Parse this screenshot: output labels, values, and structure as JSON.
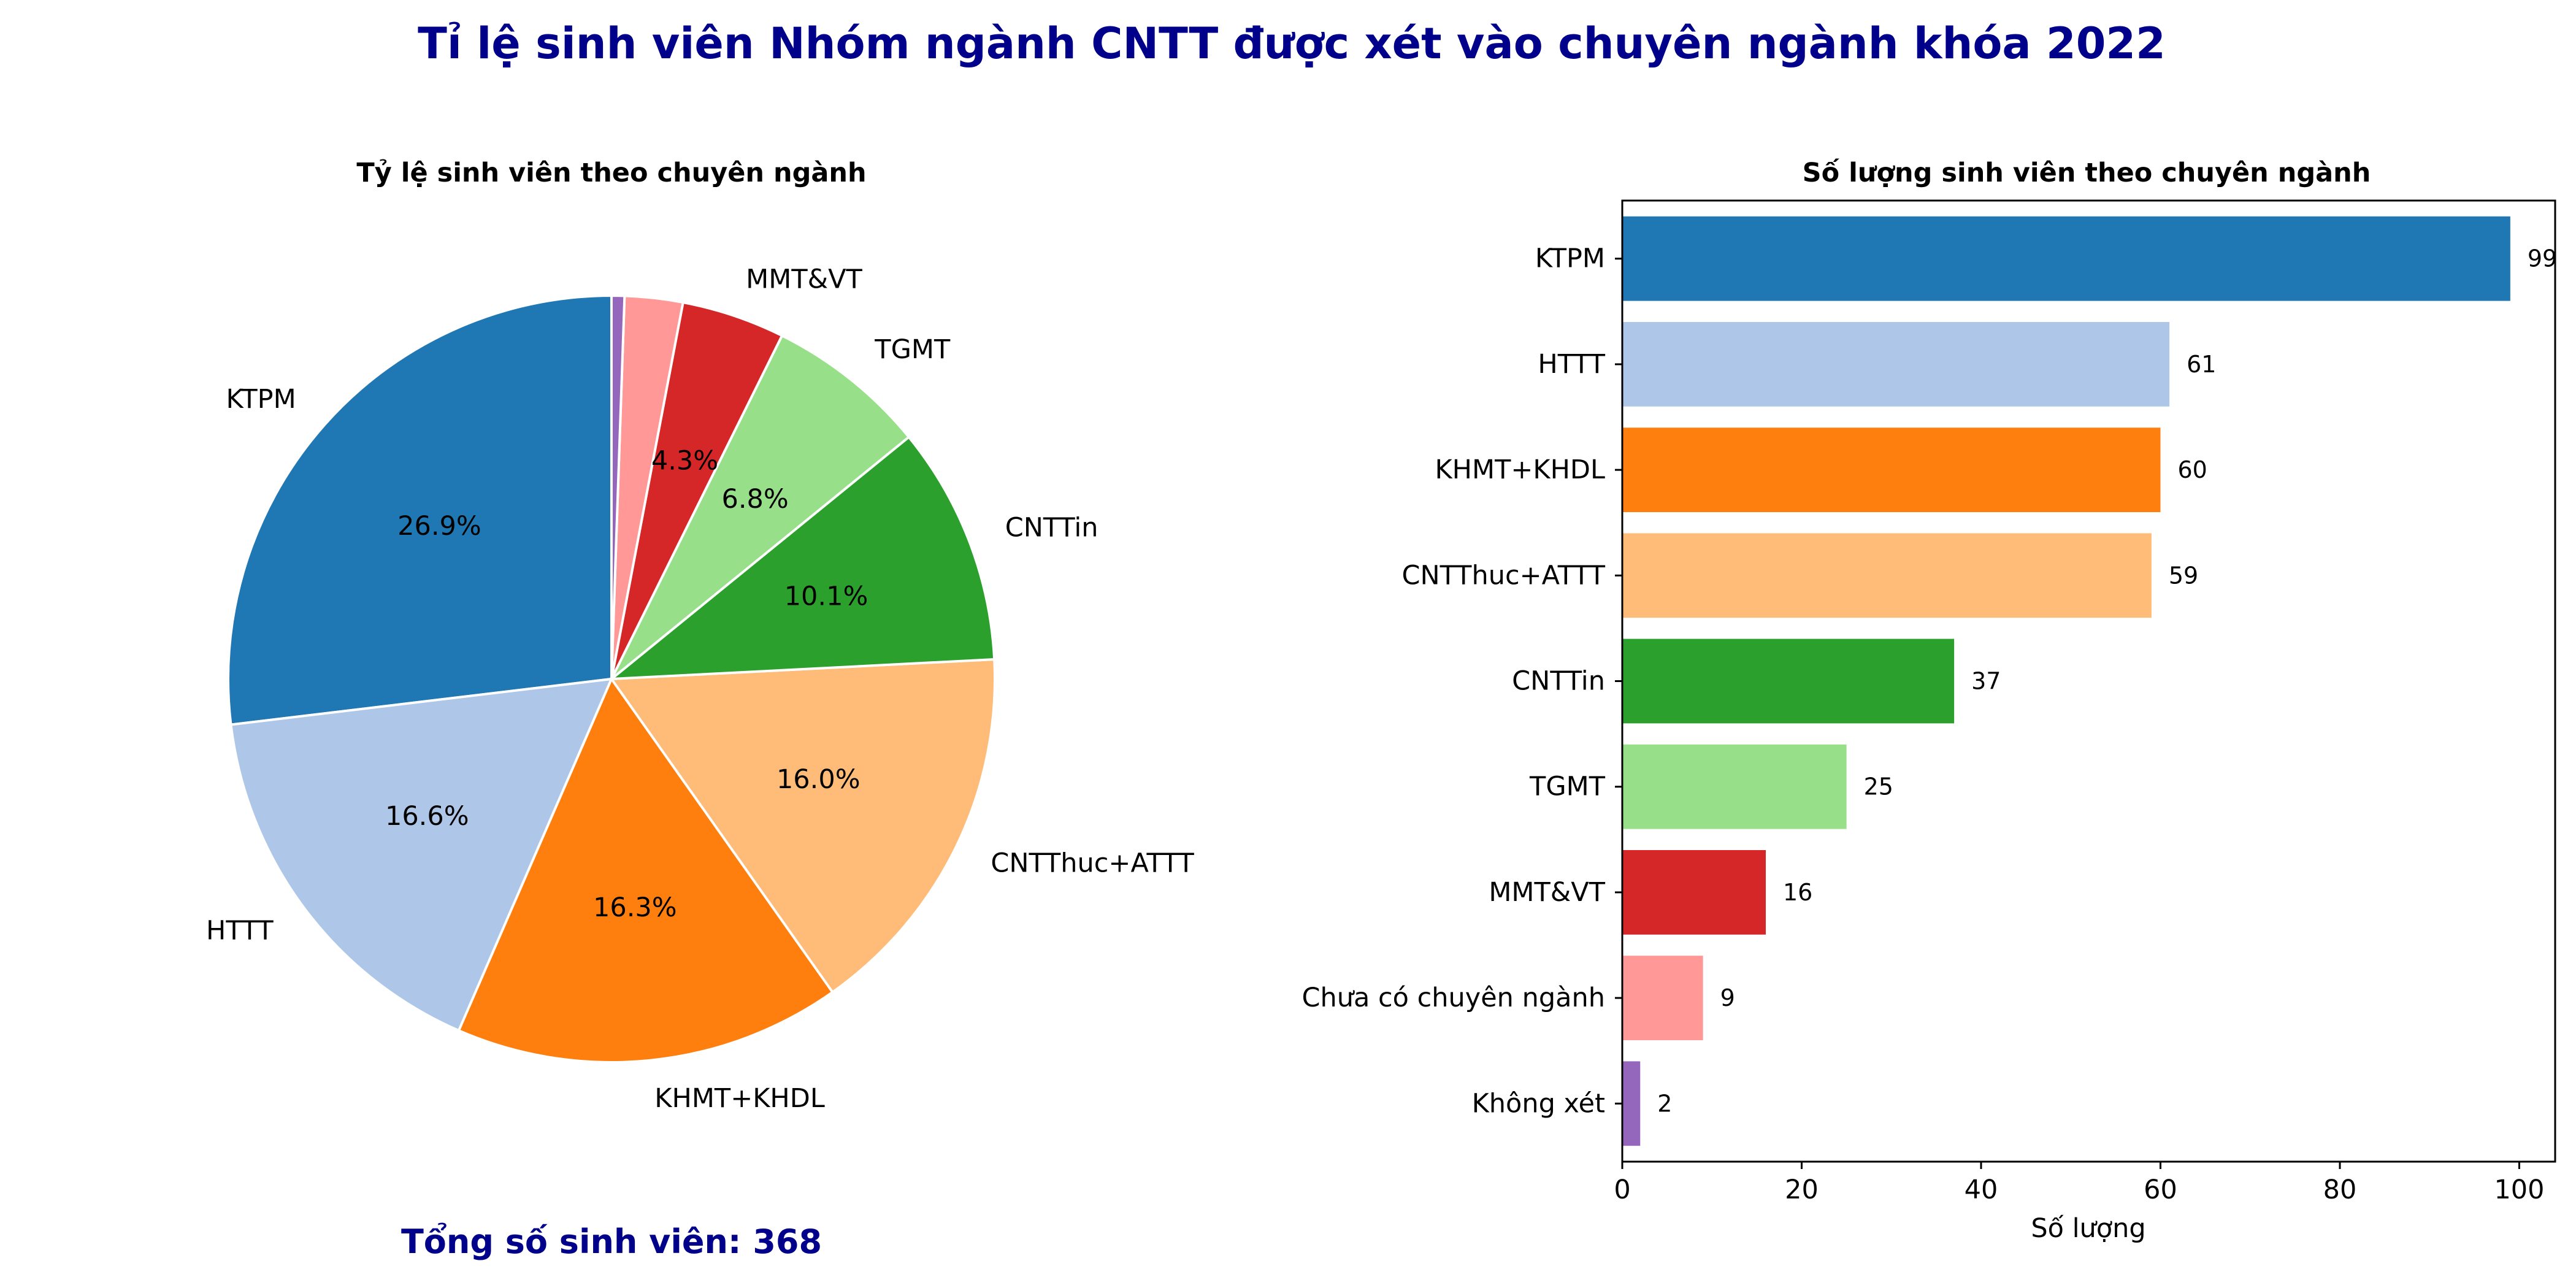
{
  "title": "Tỉ lệ sinh viên Nhóm ngành CNTT được xét vào chuyên ngành khóa 2022",
  "total_label": "Tổng số sinh viên: 368",
  "colors": {
    "title": "#00008b",
    "KTPM": "#1f77b4",
    "HTTT": "#aec7e8",
    "KHMT+KHDL": "#ff7f0e",
    "CNTThuc+ATTT": "#ffbb78",
    "CNTTin": "#2ca02c",
    "TGMT": "#98df8a",
    "MMT&VT": "#d62728",
    "Chưa có chuyên ngành": "#ff9896",
    "Không xét": "#9467bd"
  },
  "chart_data": [
    {
      "type": "pie",
      "title": "Tỷ lệ sinh viên theo chuyên ngành",
      "start_angle_deg": 90,
      "direction": "counterclockwise",
      "labels": [
        "KTPM",
        "HTTT",
        "KHMT+KHDL",
        "CNTThuc+ATTT",
        "CNTTin",
        "TGMT",
        "MMT&VT",
        "",
        ""
      ],
      "categories": [
        "KTPM",
        "HTTT",
        "KHMT+KHDL",
        "CNTThuc+ATTT",
        "CNTTin",
        "TGMT",
        "MMT&VT",
        "Chưa có chuyên ngành",
        "Không xét"
      ],
      "values": [
        99,
        61,
        60,
        59,
        37,
        25,
        16,
        9,
        2
      ],
      "pct_labels": [
        "26.9%",
        "16.6%",
        "16.3%",
        "16.0%",
        "10.1%",
        "6.8%",
        "4.3%",
        "",
        ""
      ]
    },
    {
      "type": "bar",
      "orientation": "horizontal",
      "title": "Số lượng sinh viên theo chuyên ngành",
      "categories": [
        "KTPM",
        "HTTT",
        "KHMT+KHDL",
        "CNTThuc+ATTT",
        "CNTTin",
        "TGMT",
        "MMT&VT",
        "Chưa có chuyên ngành",
        "Không xét"
      ],
      "values": [
        99,
        61,
        60,
        59,
        37,
        25,
        16,
        9,
        2
      ],
      "xlabel": "Số lượng",
      "ylabel": "",
      "xlim": [
        0,
        104
      ],
      "xticks": [
        0,
        20,
        40,
        60,
        80,
        100
      ],
      "grid": false
    }
  ]
}
